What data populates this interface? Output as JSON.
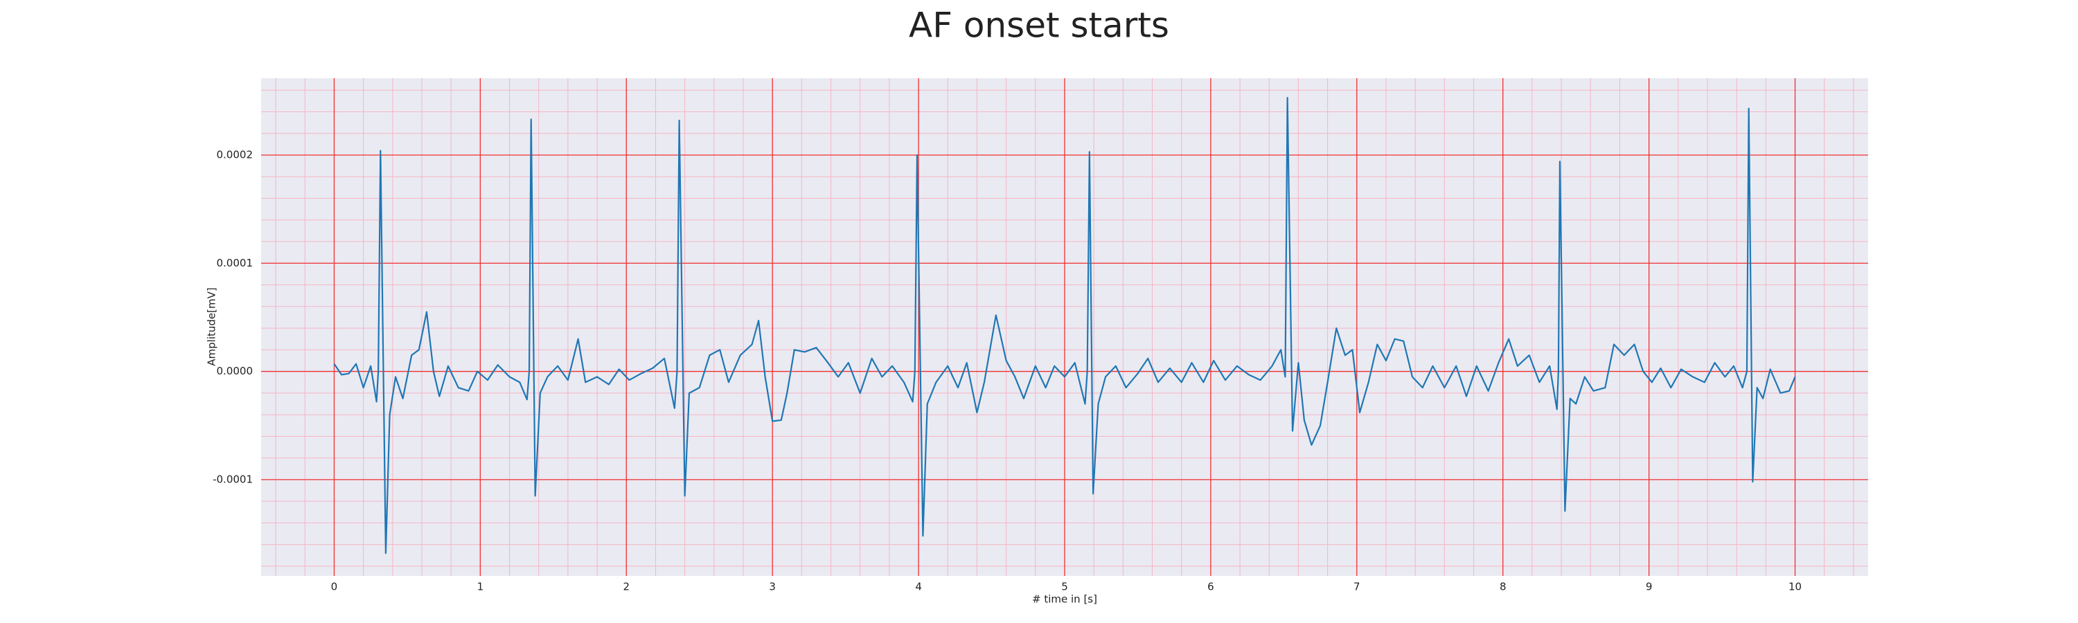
{
  "chart_data": {
    "type": "line",
    "title": "AF onset starts",
    "xlabel": "# time in [s]",
    "ylabel": "Amplitude[mV]",
    "color": "#1f77b4",
    "grid": true,
    "minor_grid": true,
    "grid_color": "#f03030",
    "minor_grid_color": "#f5b5c5",
    "background": "#eaeaf2",
    "xlim": [
      -0.5,
      10.5
    ],
    "xticks": [
      0,
      1,
      2,
      3,
      4,
      5,
      6,
      7,
      8,
      9,
      10
    ],
    "ylim": [
      -0.000189,
      0.000271
    ],
    "yticks": [
      -0.0001,
      {
        "value": 0,
        "label": "0.0000"
      },
      0.0001,
      0.0002
    ],
    "x": [
      0,
      0.05,
      0.1,
      0.15,
      0.2,
      0.25,
      0.29,
      0.302,
      0.317,
      0.353,
      0.38,
      0.42,
      0.47,
      0.53,
      0.58,
      0.633,
      0.68,
      0.72,
      0.78,
      0.85,
      0.92,
      0.98,
      1.05,
      1.12,
      1.2,
      1.27,
      1.32,
      1.335,
      1.348,
      1.376,
      1.41,
      1.46,
      1.53,
      1.6,
      1.67,
      1.72,
      1.8,
      1.88,
      1.95,
      2.02,
      2.1,
      2.18,
      2.26,
      2.33,
      2.347,
      2.362,
      2.4,
      2.43,
      2.5,
      2.57,
      2.64,
      2.7,
      2.78,
      2.86,
      2.905,
      2.95,
      3.0,
      3.06,
      3.1,
      3.15,
      3.22,
      3.3,
      3.38,
      3.45,
      3.52,
      3.6,
      3.68,
      3.75,
      3.82,
      3.9,
      3.96,
      3.975,
      3.99,
      4.03,
      4.06,
      4.12,
      4.2,
      4.27,
      4.33,
      4.4,
      4.45,
      4.53,
      4.6,
      4.66,
      4.72,
      4.8,
      4.87,
      4.93,
      5.0,
      5.07,
      5.14,
      5.155,
      5.17,
      5.195,
      5.23,
      5.28,
      5.35,
      5.42,
      5.5,
      5.57,
      5.64,
      5.72,
      5.8,
      5.87,
      5.95,
      6.02,
      6.1,
      6.18,
      6.26,
      6.34,
      6.42,
      6.48,
      6.51,
      6.525,
      6.56,
      6.6,
      6.64,
      6.69,
      6.75,
      6.8,
      6.86,
      6.92,
      6.97,
      7.02,
      7.08,
      7.14,
      7.2,
      7.26,
      7.32,
      7.38,
      7.45,
      7.52,
      7.6,
      7.68,
      7.75,
      7.82,
      7.9,
      7.97,
      8.04,
      8.1,
      8.18,
      8.25,
      8.32,
      8.37,
      8.38,
      8.39,
      8.425,
      8.46,
      8.5,
      8.56,
      8.62,
      8.7,
      8.76,
      8.83,
      8.9,
      8.96,
      9.02,
      9.08,
      9.15,
      9.22,
      9.3,
      9.38,
      9.45,
      9.52,
      9.58,
      9.64,
      9.67,
      9.683,
      9.71,
      9.74,
      9.78,
      9.83,
      9.9,
      9.96,
      10.0
    ],
    "values": [
      7e-06,
      -3e-06,
      -2e-06,
      7e-06,
      -1.5e-05,
      5e-06,
      -2.8e-05,
      0,
      0.000204,
      -0.000168,
      -4e-05,
      -5e-06,
      -2.5e-05,
      1.5e-05,
      2e-05,
      5.5e-05,
      0,
      -2.3e-05,
      5e-06,
      -1.5e-05,
      -1.8e-05,
      0,
      -8e-06,
      6e-06,
      -5e-06,
      -1e-05,
      -2.6e-05,
      0,
      0.000233,
      -0.000115,
      -2e-05,
      -5e-06,
      5e-06,
      -8e-06,
      3e-05,
      -1e-05,
      -5e-06,
      -1.2e-05,
      2e-06,
      -8e-06,
      -2e-06,
      3e-06,
      1.2e-05,
      -3.4e-05,
      0,
      0.000232,
      -0.000115,
      -2e-05,
      -1.5e-05,
      1.5e-05,
      2e-05,
      -1e-05,
      1.5e-05,
      2.5e-05,
      4.7e-05,
      -5e-06,
      -4.6e-05,
      -4.5e-05,
      -2e-05,
      2e-05,
      1.8e-05,
      2.2e-05,
      8e-06,
      -5e-06,
      8e-06,
      -2e-05,
      1.2e-05,
      -5e-06,
      5e-06,
      -1e-05,
      -2.8e-05,
      0,
      0.0002,
      -0.000152,
      -3e-05,
      -1e-05,
      5e-06,
      -1.5e-05,
      8e-06,
      -3.8e-05,
      -1e-05,
      5.2e-05,
      1e-05,
      -5e-06,
      -2.5e-05,
      5e-06,
      -1.5e-05,
      5e-06,
      -5e-06,
      8e-06,
      -3e-05,
      0,
      0.000203,
      -0.000113,
      -3e-05,
      -5e-06,
      5e-06,
      -1.5e-05,
      -2e-06,
      1.2e-05,
      -1e-05,
      3e-06,
      -1e-05,
      8e-06,
      -1e-05,
      1e-05,
      -8e-06,
      5e-06,
      -3e-06,
      -8e-06,
      5e-06,
      2e-05,
      -5e-06,
      0.000253,
      -5.5e-05,
      8e-06,
      -4.5e-05,
      -6.8e-05,
      -5e-05,
      -1e-05,
      4e-05,
      1.5e-05,
      2e-05,
      -3.8e-05,
      -1e-05,
      2.5e-05,
      1e-05,
      3e-05,
      2.8e-05,
      -5e-06,
      -1.5e-05,
      5e-06,
      -1.5e-05,
      5e-06,
      -2.3e-05,
      5e-06,
      -1.8e-05,
      8e-06,
      3e-05,
      5e-06,
      1.5e-05,
      -1e-05,
      5e-06,
      -3.5e-05,
      0,
      0.000194,
      -0.000129,
      -2.5e-05,
      -3e-05,
      -5e-06,
      -1.8e-05,
      -1.5e-05,
      2.5e-05,
      1.5e-05,
      2.5e-05,
      0,
      -1e-05,
      3e-06,
      -1.5e-05,
      2e-06,
      -5e-06,
      -1e-05,
      8e-06,
      -5e-06,
      5e-06,
      -1.5e-05,
      0,
      0.000243,
      -0.000102,
      -1.5e-05,
      -2.5e-05,
      2e-06,
      -2e-05,
      -1.8e-05,
      -5e-06
    ]
  }
}
